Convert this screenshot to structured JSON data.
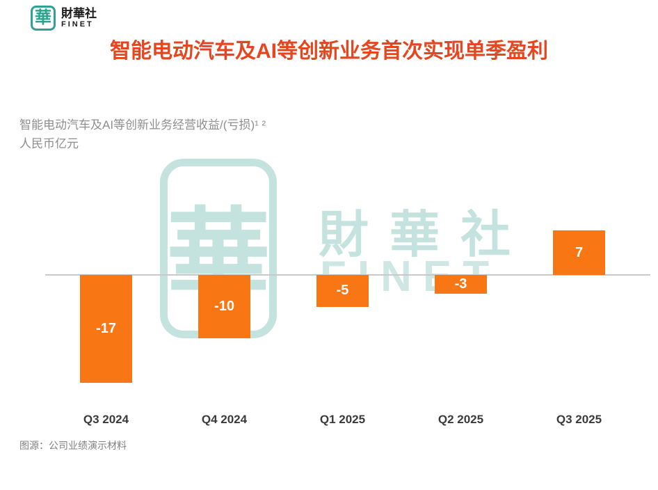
{
  "colors": {
    "bar": "#F87613",
    "title": "#E5461F",
    "brand-teal": "#2FA190",
    "watermark-teal": "rgba(64, 162, 147, 0.30)",
    "axis-line": "#C9C9C9",
    "subtitle-gray": "#8E8E8E",
    "label-dark": "#3A3A3A",
    "source-gray": "#808080"
  },
  "brand": {
    "logo_char": "華",
    "name": "財華社",
    "name_sub": "FINET"
  },
  "chart_data": {
    "type": "bar",
    "title": "智能电动汽车及AI等创新业务首次实现单季盈利",
    "subtitle_line1": "智能电动汽车及AI等创新业务经营收益/(亏损)¹ ²",
    "subtitle_line2": "人民币亿元",
    "unit": "人民币亿元",
    "categories": [
      "Q3 2024",
      "Q4 2024",
      "Q1 2025",
      "Q2 2025",
      "Q3 2025"
    ],
    "values": [
      -17,
      -10,
      -5,
      -3,
      7
    ],
    "bar_color": "#F87613",
    "ylim": [
      -19,
      9
    ],
    "grid": false,
    "legend": false,
    "data_label_position": "inside-center",
    "xlabel": "",
    "ylabel": "人民币亿元"
  },
  "watermark": {
    "seal_char": "華",
    "text_cn": "財華社",
    "text_en": "FINET"
  },
  "footer": {
    "source": "图源：公司业绩演示材料"
  }
}
